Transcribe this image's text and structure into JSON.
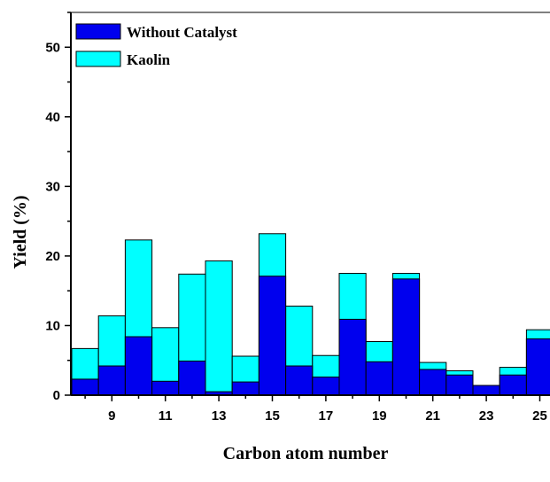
{
  "chart_data": {
    "type": "bar",
    "stacked": true,
    "xlabel": "Carbon atom number",
    "ylabel": "Yield (%)",
    "x": [
      8,
      9,
      10,
      11,
      12,
      13,
      14,
      15,
      16,
      17,
      18,
      19,
      20,
      21,
      22,
      23,
      24,
      25
    ],
    "xticks": [
      "9",
      "11",
      "13",
      "15",
      "17",
      "19",
      "21",
      "23",
      "25"
    ],
    "yticks": [
      "0",
      "10",
      "20",
      "30",
      "40",
      "50"
    ],
    "ylim": [
      0,
      55
    ],
    "legend_position": "top-left",
    "grid": false,
    "series": [
      {
        "name": "Without Catalyst",
        "color": "#0000ee",
        "values": [
          2.3,
          4.2,
          8.4,
          2.0,
          4.9,
          0.5,
          1.9,
          17.1,
          4.2,
          2.6,
          10.9,
          4.8,
          16.7,
          3.7,
          2.9,
          1.4,
          2.9,
          8.1
        ]
      },
      {
        "name": "Kaolin",
        "color": "#00ffff",
        "values": [
          6.7,
          11.4,
          22.3,
          9.7,
          17.4,
          19.3,
          5.6,
          23.2,
          12.8,
          5.7,
          17.5,
          7.7,
          17.5,
          4.7,
          3.5,
          1.3,
          4.0,
          9.4
        ]
      }
    ]
  }
}
